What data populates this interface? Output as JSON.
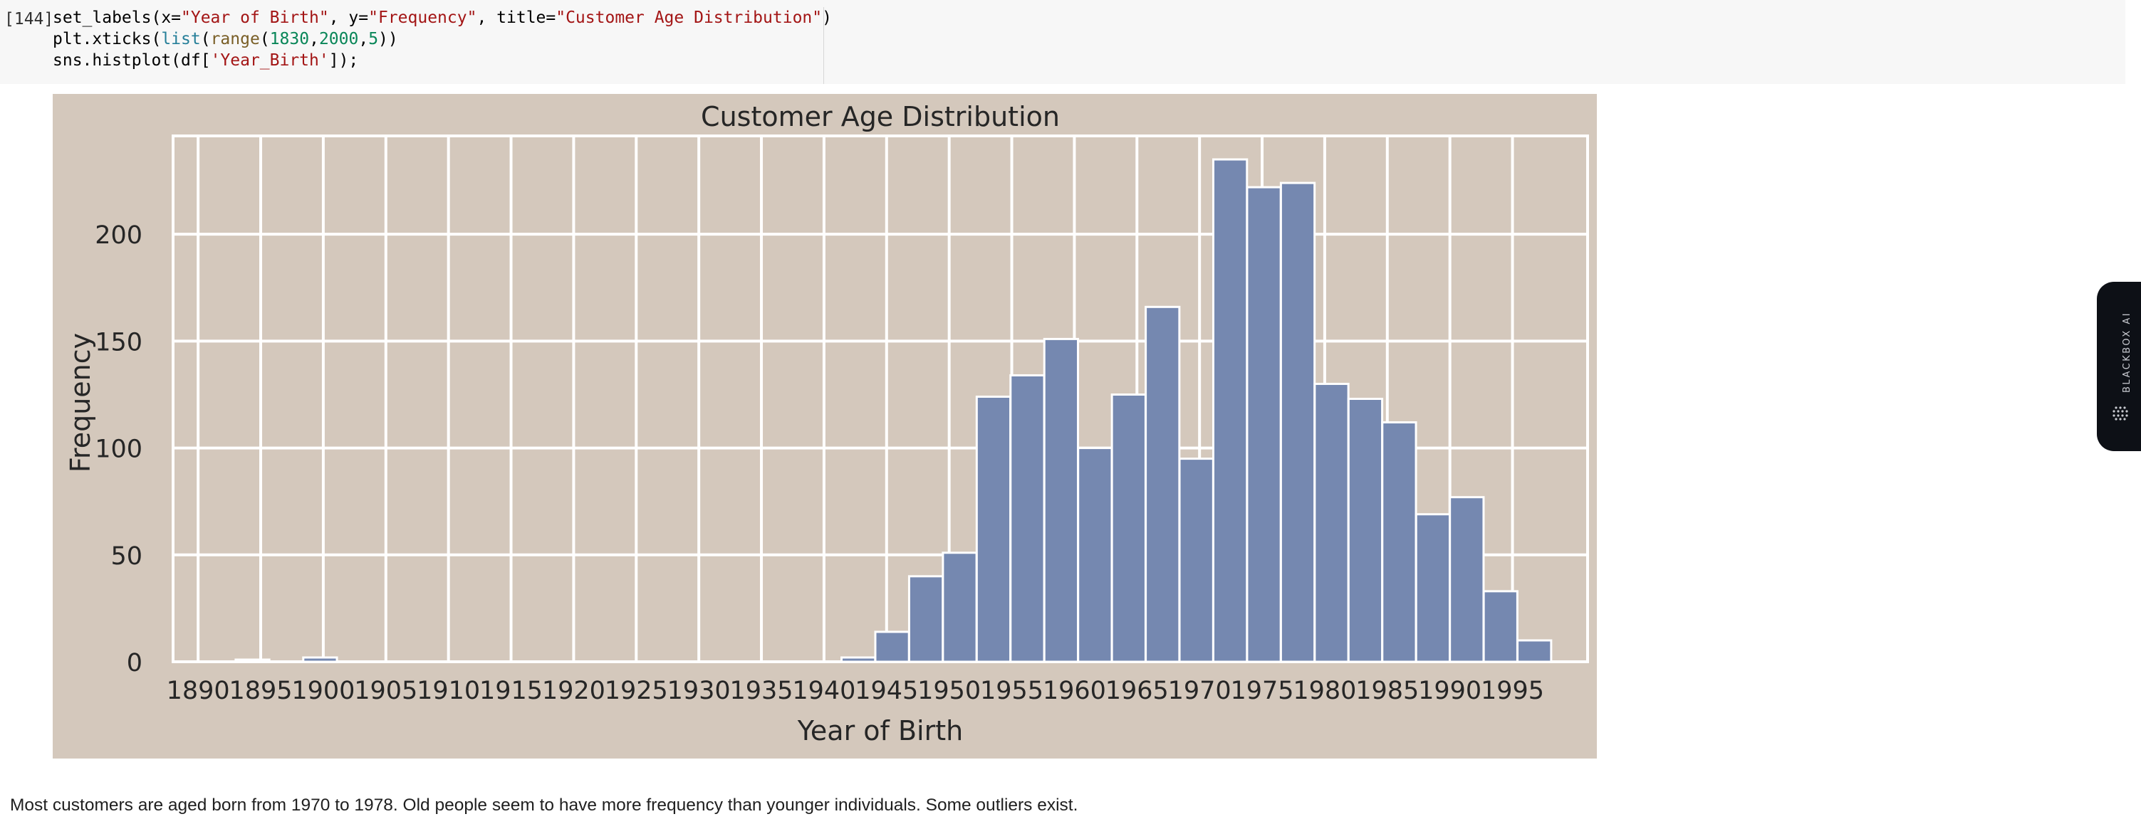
{
  "notebook": {
    "cell": {
      "prompt": "[144]",
      "code": {
        "line1": {
          "p1": "set_labels(x=",
          "s1": "\"Year of Birth\"",
          "p2": ", y=",
          "s2": "\"Frequency\"",
          "p3": ", title=",
          "s3": "\"Customer Age Distribution\"",
          "p4": ")"
        },
        "line2": {
          "p1": "plt.xticks(",
          "b1": "list",
          "p2": "(",
          "f1": "range",
          "p3": "(",
          "n1": "1830",
          "c1": ",",
          "n2": "2000",
          "c2": ",",
          "n3": "5",
          "p4": "))"
        },
        "line3": {
          "p1": "sns.histplot(df[",
          "s1": "'Year_Birth'",
          "p2": "]);"
        }
      }
    },
    "markdown": "Most customers are aged born from 1970 to 1978. Old people seem to have more frequency than younger individuals. Some outliers exist."
  },
  "sidebar_tab": {
    "label": "BLACKBOX AI",
    "icon": "blackbox-logo-icon"
  },
  "colors": {
    "plot_background": "#d4c8bc",
    "bar_fill": "#7588b0",
    "grid": "#ffffff",
    "text": "#262626"
  },
  "chart_data": {
    "type": "bar",
    "title": "Customer Age Distribution",
    "xlabel": "Year of Birth",
    "ylabel": "Frequency",
    "x_ticks": [
      1890,
      1895,
      1900,
      1905,
      1910,
      1915,
      1920,
      1925,
      1930,
      1935,
      1940,
      1945,
      1950,
      1955,
      1960,
      1965,
      1970,
      1975,
      1980,
      1985,
      1990,
      1995
    ],
    "y_ticks": [
      0,
      50,
      100,
      150,
      200
    ],
    "xlim": [
      1888,
      2001
    ],
    "ylim": [
      0,
      246
    ],
    "bin_width": 2.69,
    "bins": [
      {
        "start": 1893.0,
        "value": 1
      },
      {
        "start": 1898.4,
        "value": 2
      },
      {
        "start": 1941.4,
        "value": 2
      },
      {
        "start": 1944.1,
        "value": 14
      },
      {
        "start": 1946.8,
        "value": 40
      },
      {
        "start": 1949.5,
        "value": 51
      },
      {
        "start": 1952.2,
        "value": 124
      },
      {
        "start": 1954.9,
        "value": 134
      },
      {
        "start": 1957.6,
        "value": 151
      },
      {
        "start": 1960.3,
        "value": 100
      },
      {
        "start": 1963.0,
        "value": 125
      },
      {
        "start": 1965.7,
        "value": 166
      },
      {
        "start": 1968.4,
        "value": 95
      },
      {
        "start": 1971.1,
        "value": 235
      },
      {
        "start": 1973.8,
        "value": 222
      },
      {
        "start": 1976.5,
        "value": 224
      },
      {
        "start": 1979.2,
        "value": 130
      },
      {
        "start": 1981.9,
        "value": 123
      },
      {
        "start": 1984.6,
        "value": 112
      },
      {
        "start": 1987.3,
        "value": 69
      },
      {
        "start": 1990.0,
        "value": 77
      },
      {
        "start": 1992.7,
        "value": 33
      },
      {
        "start": 1995.4,
        "value": 10
      }
    ]
  }
}
